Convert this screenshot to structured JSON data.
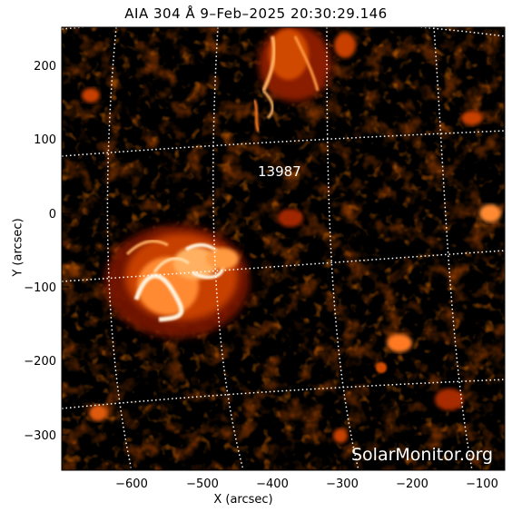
{
  "title": "AIA 304 Å  9–Feb–2025 20:30:29.146",
  "x_axis_label": "X (arcsec)",
  "y_axis_label": "Y (arcsec)",
  "x_ticks": [
    "−600",
    "−500",
    "−400",
    "−300",
    "−200",
    "−100"
  ],
  "y_ticks": [
    "200",
    "100",
    "0",
    "−100",
    "−200",
    "−300"
  ],
  "region_label": "13987",
  "credit": "SolarMonitor.org",
  "colors": {
    "background": "#000000",
    "emission_dim": "#5a0e00",
    "emission_mid": "#c43a00",
    "emission_bright": "#ffb060",
    "emission_peak": "#fff2dc",
    "grid": "#ffffff"
  }
}
